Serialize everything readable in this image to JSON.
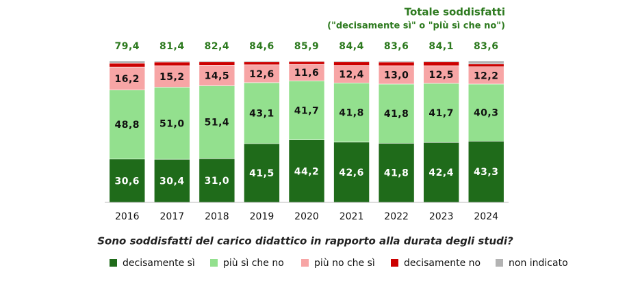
{
  "chart_data": {
    "type": "stacked_bar",
    "title": "Totale soddisfatti",
    "subtitle": "(\"decisamente sì\" o \"più sì che no\")",
    "x_label": "Sono soddisfatti del carico didattico in rapporto alla durata degli studi?",
    "categories": [
      "2016",
      "2017",
      "2018",
      "2019",
      "2020",
      "2021",
      "2022",
      "2023",
      "2024"
    ],
    "ylim": [
      0,
      100
    ],
    "series": [
      {
        "name": "decisamente sì",
        "color": "#1f6b1a",
        "label_color": "#ffffff",
        "values": [
          30.6,
          30.4,
          31.0,
          41.5,
          44.2,
          42.6,
          41.8,
          42.4,
          43.3
        ],
        "value_labels": [
          "30,6",
          "30,4",
          "31,0",
          "41,5",
          "44,2",
          "42,6",
          "41,8",
          "42,4",
          "43,3"
        ]
      },
      {
        "name": "più sì che no",
        "color": "#93e08e",
        "label_color": "#111111",
        "values": [
          48.8,
          51.0,
          51.4,
          43.1,
          41.7,
          41.8,
          41.8,
          41.7,
          40.3
        ],
        "value_labels": [
          "48,8",
          "51,0",
          "51,4",
          "43,1",
          "41,7",
          "41,8",
          "41,8",
          "41,7",
          "40,3"
        ]
      },
      {
        "name": "più no che sì",
        "color": "#f7a5a5",
        "label_color": "#111111",
        "values": [
          16.2,
          15.2,
          14.5,
          12.6,
          11.6,
          12.4,
          13.0,
          12.5,
          12.2
        ],
        "value_labels": [
          "16,2",
          "15,2",
          "14,5",
          "12,6",
          "11,6",
          "12,4",
          "13,0",
          "12,5",
          "12,2"
        ]
      },
      {
        "name": "decisamente no",
        "color": "#cc0000",
        "values": [
          2.8,
          2.5,
          2.3,
          2.0,
          2.0,
          2.4,
          2.5,
          2.6,
          2.0
        ]
      },
      {
        "name": "non indicato",
        "color": "#b3b3b3",
        "values": [
          1.6,
          0.9,
          0.8,
          0.8,
          0.5,
          0.8,
          0.9,
          0.8,
          2.2
        ]
      }
    ],
    "totals": {
      "values": [
        79.4,
        81.4,
        82.4,
        84.6,
        85.9,
        84.4,
        83.6,
        84.1,
        83.6
      ],
      "value_labels": [
        "79,4",
        "81,4",
        "82,4",
        "84,6",
        "85,9",
        "84,4",
        "83,6",
        "84,1",
        "83,6"
      ]
    }
  }
}
